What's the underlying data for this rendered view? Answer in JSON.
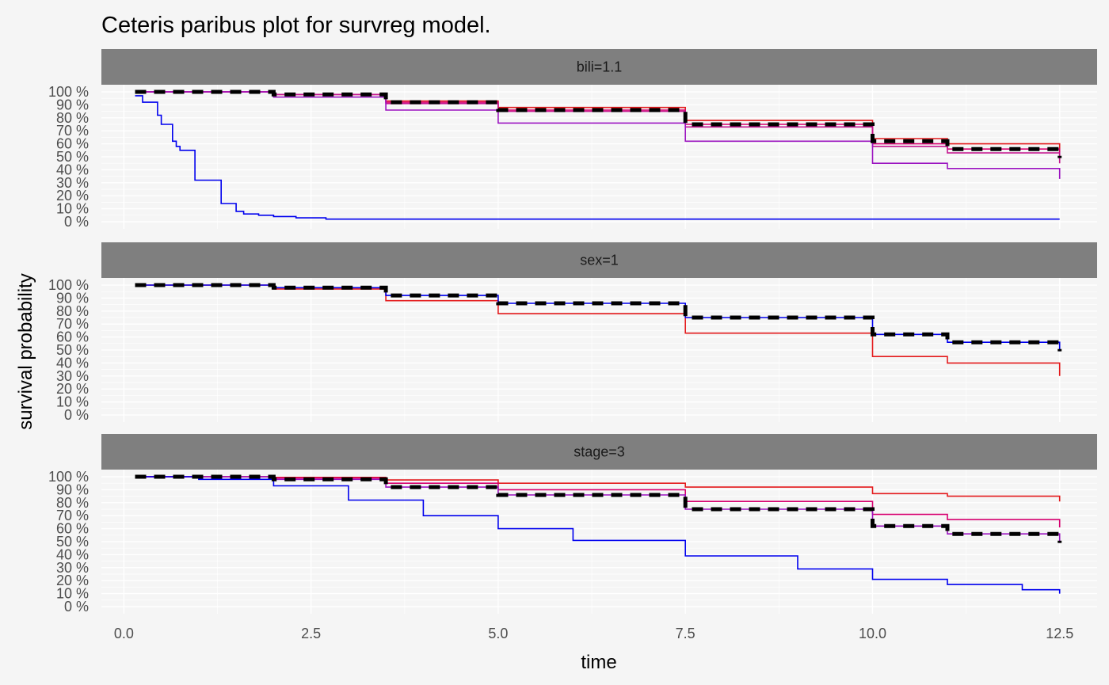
{
  "chart_data": {
    "type": "line",
    "title": "Ceteris paribus plot for survreg model.",
    "xlabel": "time",
    "ylabel": "survival probability",
    "xlim": [
      -0.3,
      13.0
    ],
    "ylim": [
      0,
      1
    ],
    "x_ticks": [
      0.0,
      2.5,
      5.0,
      7.5,
      10.0,
      12.5
    ],
    "x_tick_labels": [
      "0.0",
      "2.5",
      "5.0",
      "7.5",
      "10.0",
      "12.5"
    ],
    "y_ticks": [
      0,
      0.1,
      0.2,
      0.3,
      0.4,
      0.5,
      0.6,
      0.7,
      0.8,
      0.9,
      1.0
    ],
    "y_tick_labels": [
      "0 %",
      "10 %",
      "20 %",
      "30 %",
      "40 %",
      "50 %",
      "60 %",
      "70 %",
      "80 %",
      "90 %",
      "100 %"
    ],
    "grid": true,
    "legend": "none",
    "panels": [
      {
        "strip_label": "bili=1.1",
        "series": [
          {
            "color": "#e41a1c",
            "style": "solid",
            "points": [
              [
                0.15,
                1.0
              ],
              [
                2.0,
                0.98
              ],
              [
                3.5,
                0.93
              ],
              [
                5.0,
                0.88
              ],
              [
                7.5,
                0.78
              ],
              [
                10.0,
                0.64
              ],
              [
                11.0,
                0.6
              ],
              [
                12.5,
                0.53
              ]
            ]
          },
          {
            "color": "#d6006f",
            "style": "solid",
            "points": [
              [
                0.15,
                1.0
              ],
              [
                2.0,
                0.98
              ],
              [
                3.5,
                0.92
              ],
              [
                5.0,
                0.86
              ],
              [
                7.5,
                0.75
              ],
              [
                10.0,
                0.6
              ],
              [
                11.0,
                0.56
              ],
              [
                12.5,
                0.48
              ]
            ]
          },
          {
            "color": "#c5168f",
            "style": "solid",
            "points": [
              [
                0.15,
                1.0
              ],
              [
                2.0,
                0.98
              ],
              [
                3.5,
                0.91
              ],
              [
                5.0,
                0.85
              ],
              [
                7.5,
                0.73
              ],
              [
                10.0,
                0.58
              ],
              [
                11.0,
                0.53
              ],
              [
                12.5,
                0.45
              ]
            ]
          },
          {
            "color": "#9b13c0",
            "style": "solid",
            "points": [
              [
                0.15,
                1.0
              ],
              [
                2.0,
                0.96
              ],
              [
                3.5,
                0.86
              ],
              [
                5.0,
                0.76
              ],
              [
                7.5,
                0.62
              ],
              [
                10.0,
                0.45
              ],
              [
                11.0,
                0.41
              ],
              [
                12.5,
                0.33
              ]
            ]
          },
          {
            "color": "#0000ee",
            "style": "solid",
            "points": [
              [
                0.15,
                0.97
              ],
              [
                0.25,
                0.92
              ],
              [
                0.4,
                0.92
              ],
              [
                0.45,
                0.82
              ],
              [
                0.5,
                0.75
              ],
              [
                0.6,
                0.75
              ],
              [
                0.65,
                0.62
              ],
              [
                0.7,
                0.58
              ],
              [
                0.75,
                0.55
              ],
              [
                0.9,
                0.55
              ],
              [
                0.95,
                0.32
              ],
              [
                1.25,
                0.32
              ],
              [
                1.3,
                0.14
              ],
              [
                1.45,
                0.14
              ],
              [
                1.5,
                0.08
              ],
              [
                1.6,
                0.06
              ],
              [
                1.8,
                0.05
              ],
              [
                2.0,
                0.04
              ],
              [
                2.3,
                0.03
              ],
              [
                2.7,
                0.02
              ],
              [
                12.5,
                0.02
              ]
            ]
          },
          {
            "color": "#000000",
            "style": "dashed",
            "points": [
              [
                0.15,
                1.0
              ],
              [
                2.0,
                0.98
              ],
              [
                3.5,
                0.92
              ],
              [
                5.0,
                0.86
              ],
              [
                7.5,
                0.75
              ],
              [
                10.0,
                0.62
              ],
              [
                11.0,
                0.56
              ],
              [
                12.5,
                0.49
              ]
            ]
          }
        ]
      },
      {
        "strip_label": "sex=1",
        "series": [
          {
            "color": "#e41a1c",
            "style": "solid",
            "points": [
              [
                0.15,
                1.0
              ],
              [
                2.0,
                0.97
              ],
              [
                3.5,
                0.88
              ],
              [
                5.0,
                0.78
              ],
              [
                7.5,
                0.63
              ],
              [
                10.0,
                0.45
              ],
              [
                11.0,
                0.4
              ],
              [
                12.5,
                0.3
              ]
            ]
          },
          {
            "color": "#0000ee",
            "style": "solid",
            "points": [
              [
                0.15,
                1.0
              ],
              [
                2.0,
                0.98
              ],
              [
                3.5,
                0.92
              ],
              [
                5.0,
                0.86
              ],
              [
                7.5,
                0.75
              ],
              [
                10.0,
                0.62
              ],
              [
                11.0,
                0.56
              ],
              [
                12.5,
                0.49
              ]
            ]
          },
          {
            "color": "#000000",
            "style": "dashed",
            "points": [
              [
                0.15,
                1.0
              ],
              [
                2.0,
                0.98
              ],
              [
                3.5,
                0.92
              ],
              [
                5.0,
                0.86
              ],
              [
                7.5,
                0.75
              ],
              [
                10.0,
                0.62
              ],
              [
                11.0,
                0.56
              ],
              [
                12.5,
                0.49
              ]
            ]
          }
        ]
      },
      {
        "strip_label": "stage=3",
        "series": [
          {
            "color": "#e41a1c",
            "style": "solid",
            "points": [
              [
                0.15,
                1.0
              ],
              [
                2.0,
                0.995
              ],
              [
                3.5,
                0.975
              ],
              [
                5.0,
                0.95
              ],
              [
                7.5,
                0.92
              ],
              [
                10.0,
                0.87
              ],
              [
                11.0,
                0.85
              ],
              [
                12.5,
                0.81
              ]
            ]
          },
          {
            "color": "#d6006f",
            "style": "solid",
            "points": [
              [
                0.15,
                1.0
              ],
              [
                2.0,
                0.99
              ],
              [
                3.5,
                0.95
              ],
              [
                5.0,
                0.9
              ],
              [
                7.5,
                0.81
              ],
              [
                10.0,
                0.71
              ],
              [
                11.0,
                0.67
              ],
              [
                12.5,
                0.61
              ]
            ]
          },
          {
            "color": "#9b13c0",
            "style": "solid",
            "points": [
              [
                0.15,
                1.0
              ],
              [
                2.0,
                0.98
              ],
              [
                3.5,
                0.92
              ],
              [
                5.0,
                0.86
              ],
              [
                7.5,
                0.75
              ],
              [
                10.0,
                0.62
              ],
              [
                11.0,
                0.56
              ],
              [
                12.5,
                0.49
              ]
            ]
          },
          {
            "color": "#0000ee",
            "style": "solid",
            "points": [
              [
                0.15,
                1.0
              ],
              [
                1.0,
                0.98
              ],
              [
                2.0,
                0.93
              ],
              [
                3.0,
                0.82
              ],
              [
                4.0,
                0.7
              ],
              [
                5.0,
                0.6
              ],
              [
                6.0,
                0.51
              ],
              [
                7.5,
                0.39
              ],
              [
                9.0,
                0.29
              ],
              [
                10.0,
                0.21
              ],
              [
                11.0,
                0.17
              ],
              [
                12.0,
                0.13
              ],
              [
                12.5,
                0.1
              ]
            ]
          },
          {
            "color": "#000000",
            "style": "dashed",
            "points": [
              [
                0.15,
                1.0
              ],
              [
                2.0,
                0.98
              ],
              [
                3.5,
                0.92
              ],
              [
                5.0,
                0.86
              ],
              [
                7.5,
                0.75
              ],
              [
                10.0,
                0.62
              ],
              [
                11.0,
                0.56
              ],
              [
                12.5,
                0.49
              ]
            ]
          }
        ]
      }
    ]
  }
}
